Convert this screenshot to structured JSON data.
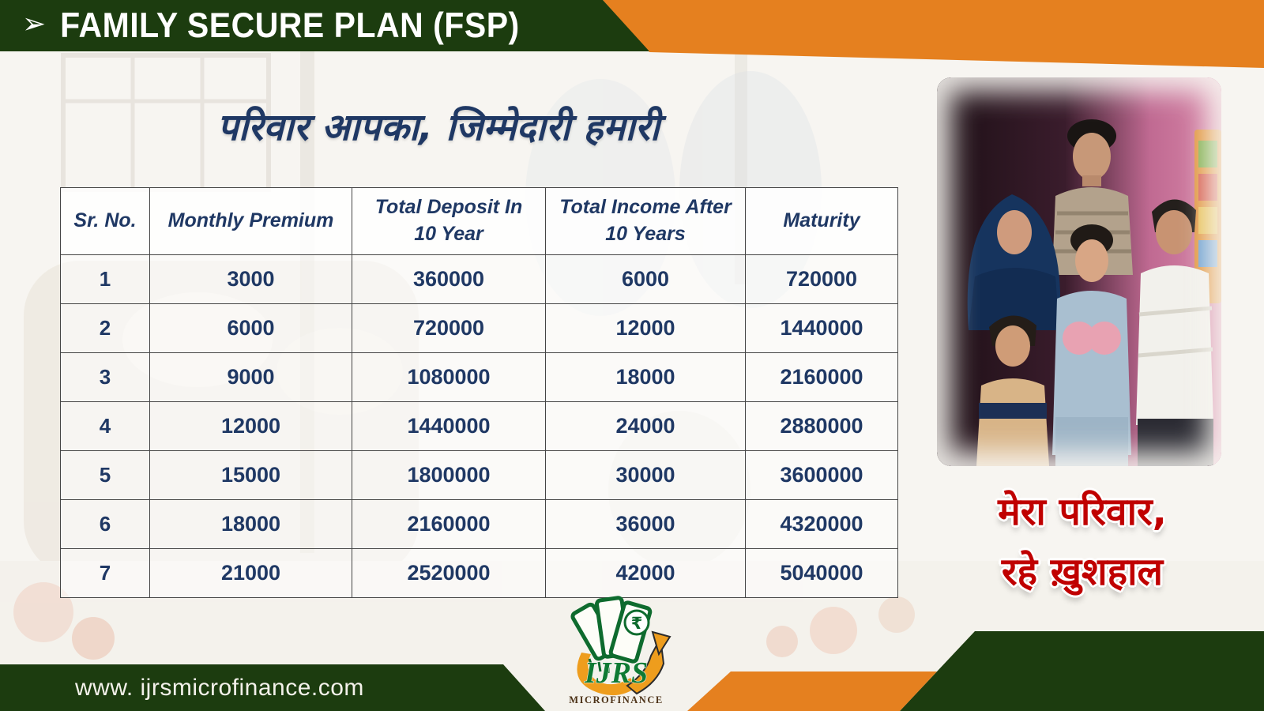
{
  "header": {
    "arrow_icon": "➢",
    "title": "FAMILY SECURE PLAN (FSP)"
  },
  "tagline": {
    "text": "परिवार आपका, जिम्मेदारी हमारी"
  },
  "table": {
    "columns": [
      "Sr. No.",
      "Monthly Premium",
      "Total Deposit In 10 Year",
      "Total Income After 10 Years",
      "Maturity"
    ],
    "rows": [
      [
        "1",
        "3000",
        "360000",
        "6000",
        "720000"
      ],
      [
        "2",
        "6000",
        "720000",
        "12000",
        "1440000"
      ],
      [
        "3",
        "9000",
        "1080000",
        "18000",
        "2160000"
      ],
      [
        "4",
        "12000",
        "1440000",
        "24000",
        "2880000"
      ],
      [
        "5",
        "15000",
        "1800000",
        "30000",
        "3600000"
      ],
      [
        "6",
        "18000",
        "2160000",
        "36000",
        "4320000"
      ],
      [
        "7",
        "21000",
        "2520000",
        "42000",
        "5040000"
      ]
    ]
  },
  "photo_caption": {
    "line1": "मेरा परिवार,",
    "line2": "रहे ख़ुशहाल"
  },
  "logo": {
    "name": "IJRS",
    "subtitle": "MICROFINANCE",
    "currency_symbol": "₹"
  },
  "footer": {
    "website": "www. ijrsmicrofinance.com"
  },
  "colors": {
    "dark_green": "#1c3c0f",
    "orange": "#e5801f",
    "navy": "#1f3864",
    "red": "#c00000"
  }
}
